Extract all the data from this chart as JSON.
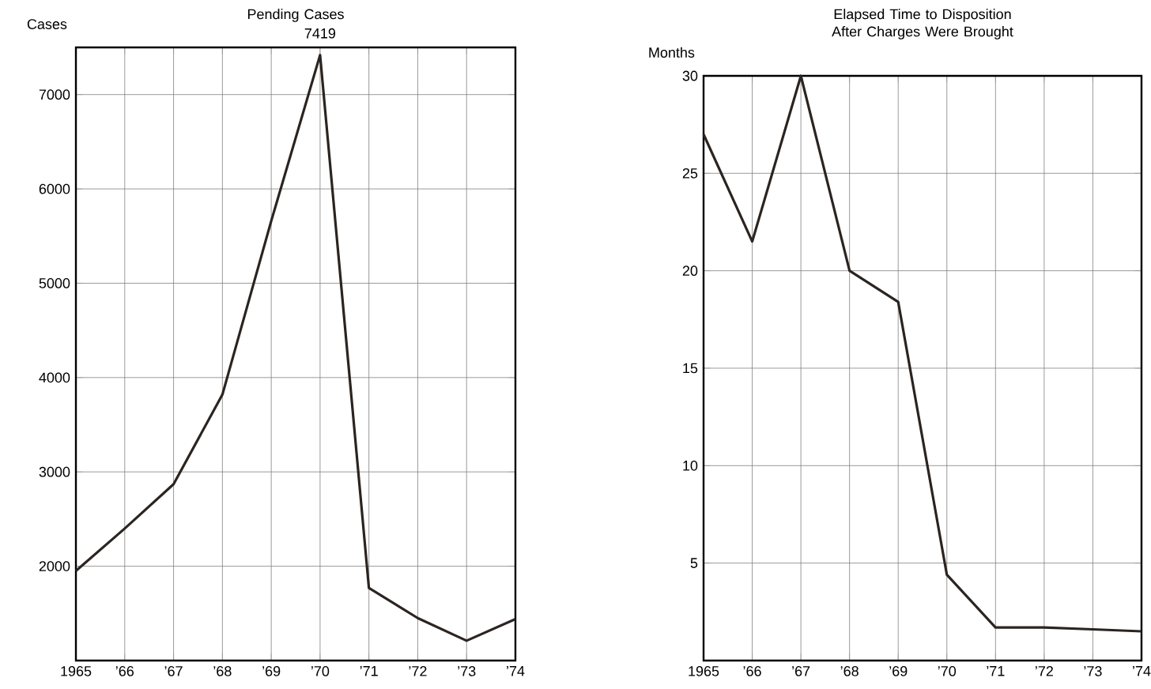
{
  "chart_data": [
    {
      "type": "line",
      "title": "Pending Cases",
      "ylabel": "Cases",
      "color": "#2b2420",
      "grid": true,
      "x": [
        1965,
        1966,
        1967,
        1968,
        1969,
        1970,
        1971,
        1972,
        1973,
        1974
      ],
      "values": [
        1950,
        2400,
        2870,
        3820,
        5660,
        7419,
        1770,
        1450,
        1210,
        1440
      ],
      "value_labels": [
        null,
        null,
        null,
        null,
        null,
        "7419",
        null,
        null,
        null,
        null
      ],
      "xlim": [
        1965,
        1974
      ],
      "ylim": [
        1000,
        7500
      ],
      "yticks": [
        2000,
        3000,
        4000,
        5000,
        6000,
        7000
      ],
      "xticks": [
        {
          "value": 1965,
          "label": "1965"
        },
        {
          "value": 1966,
          "label": "’66"
        },
        {
          "value": 1967,
          "label": "’67"
        },
        {
          "value": 1968,
          "label": "’68"
        },
        {
          "value": 1969,
          "label": "’69"
        },
        {
          "value": 1970,
          "label": "’70"
        },
        {
          "value": 1971,
          "label": "’71"
        },
        {
          "value": 1972,
          "label": "’72"
        },
        {
          "value": 1973,
          "label": "’73"
        },
        {
          "value": 1974,
          "label": "’74"
        }
      ]
    },
    {
      "type": "line",
      "title": "Elapsed Time to Disposition After Charges Were Brought",
      "ylabel": "Months",
      "color": "#2b2420",
      "grid": true,
      "x": [
        1965,
        1966,
        1967,
        1968,
        1969,
        1970,
        1971,
        1972,
        1973,
        1974
      ],
      "values": [
        27.0,
        21.5,
        30,
        20,
        18.4,
        4.4,
        1.7,
        1.7,
        1.6,
        1.5
      ],
      "xlim": [
        1965,
        1974
      ],
      "ylim": [
        0,
        30
      ],
      "yticks": [
        5,
        10,
        15,
        20,
        25,
        30
      ],
      "xticks": [
        {
          "value": 1965,
          "label": "1965"
        },
        {
          "value": 1966,
          "label": "’66"
        },
        {
          "value": 1967,
          "label": "’67"
        },
        {
          "value": 1968,
          "label": "’68"
        },
        {
          "value": 1969,
          "label": "’69"
        },
        {
          "value": 1970,
          "label": "’70"
        },
        {
          "value": 1971,
          "label": "’71"
        },
        {
          "value": 1972,
          "label": "’72"
        },
        {
          "value": 1973,
          "label": "’73"
        },
        {
          "value": 1974,
          "label": "’74"
        }
      ]
    }
  ]
}
